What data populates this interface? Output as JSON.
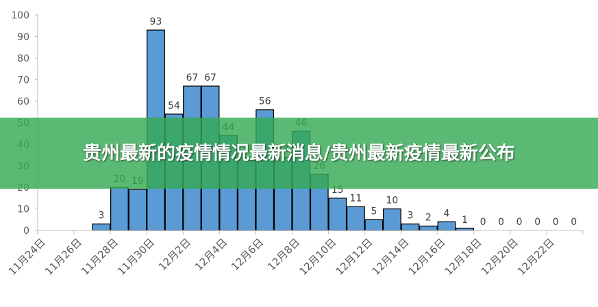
{
  "banner": {
    "title": "贵州最新的疫情情况最新消息/贵州最新疫情最新公布"
  },
  "colors": {
    "bar_fill": "#5b9bd5",
    "bar_stroke": "#000000",
    "banner": "#36aa54",
    "axis_text": "#595959",
    "grid": "#d9d9d9"
  },
  "chart_data": {
    "type": "bar",
    "title": "",
    "xlabel": "",
    "ylabel": "",
    "ylim": [
      0,
      100
    ],
    "yticks": [
      0,
      10,
      20,
      30,
      40,
      50,
      60,
      70,
      80,
      90,
      100
    ],
    "grid": false,
    "categories": [
      "11月24日",
      "11月25日",
      "11月26日",
      "11月27日",
      "11月28日",
      "11月29日",
      "11月30日",
      "12月1日",
      "12月2日",
      "12月3日",
      "12月4日",
      "12月5日",
      "12月6日",
      "12月7日",
      "12月8日",
      "12月9日",
      "12月10日",
      "12月11日",
      "12月12日",
      "12月13日",
      "12月14日",
      "12月15日",
      "12月16日",
      "12月17日",
      "12月18日",
      "12月19日",
      "12月20日",
      "12月21日",
      "12月22日",
      "12月23日"
    ],
    "tick_labels": [
      "11月24日",
      "11月26日",
      "11月28日",
      "11月30日",
      "12月2日",
      "12月4日",
      "12月6日",
      "12月8日",
      "12月10日",
      "12月12日",
      "12月14日",
      "12月16日",
      "12月18日",
      "12月20日",
      "12月22日"
    ],
    "values": [
      null,
      null,
      null,
      3,
      20,
      19,
      93,
      54,
      67,
      67,
      44,
      34,
      56,
      34,
      46,
      26,
      15,
      11,
      5,
      10,
      3,
      2,
      4,
      1,
      0,
      0,
      0,
      0,
      0,
      0
    ]
  }
}
